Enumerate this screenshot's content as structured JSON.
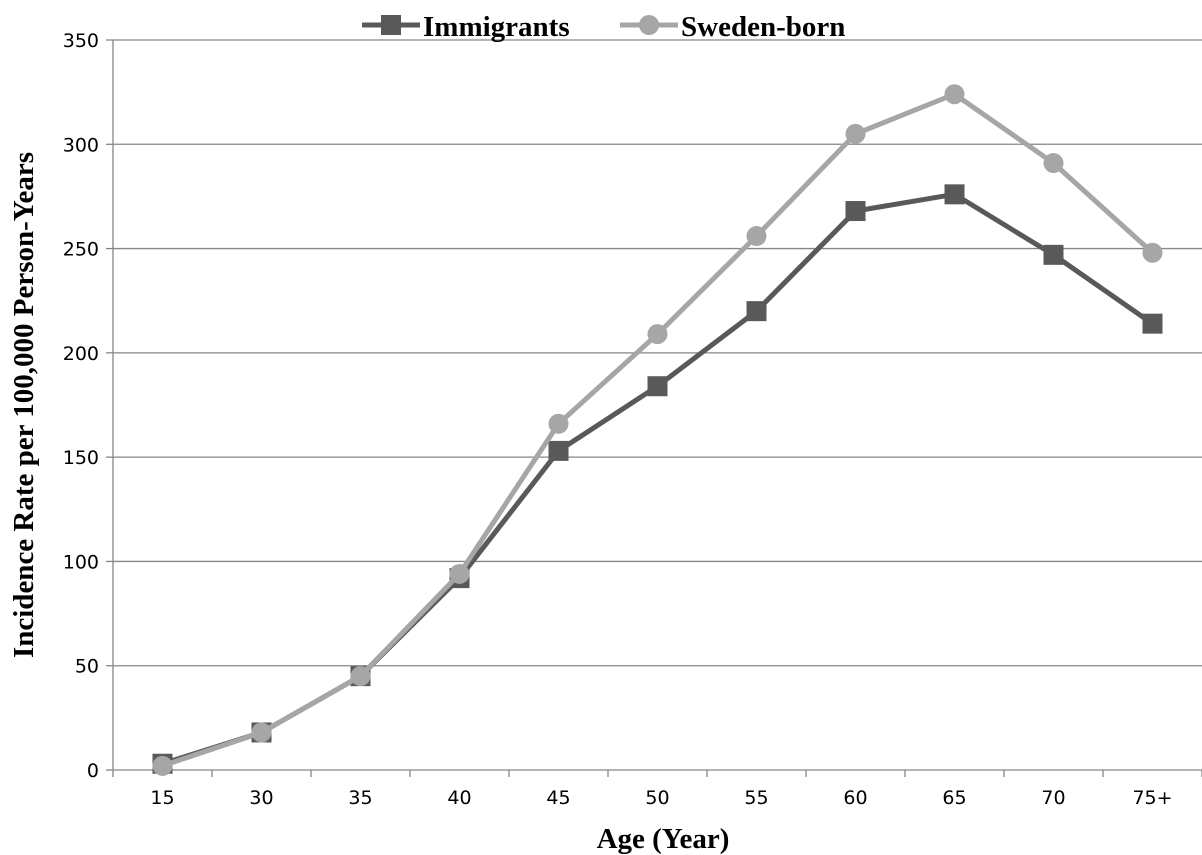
{
  "chart_data": {
    "type": "line",
    "title": "",
    "xlabel": "Age (Year)",
    "ylabel": "Incidence Rate per 100,000 Person-Years",
    "categories": [
      "15",
      "30",
      "35",
      "40",
      "45",
      "50",
      "55",
      "60",
      "65",
      "70",
      "75+"
    ],
    "ylim": [
      0,
      350
    ],
    "yticks": [
      "0",
      "50",
      "100",
      "150",
      "200",
      "250",
      "300",
      "350"
    ],
    "grid": true,
    "legend_position": "top",
    "series": [
      {
        "name": "Immigrants",
        "marker": "square",
        "color": "#595959",
        "values": [
          3,
          18,
          45,
          92,
          153,
          184,
          220,
          268,
          276,
          247,
          214
        ]
      },
      {
        "name": "Sweden-born",
        "marker": "circle",
        "color": "#a6a6a6",
        "values": [
          2,
          18,
          45,
          94,
          166,
          209,
          256,
          305,
          324,
          291,
          248
        ]
      }
    ]
  }
}
